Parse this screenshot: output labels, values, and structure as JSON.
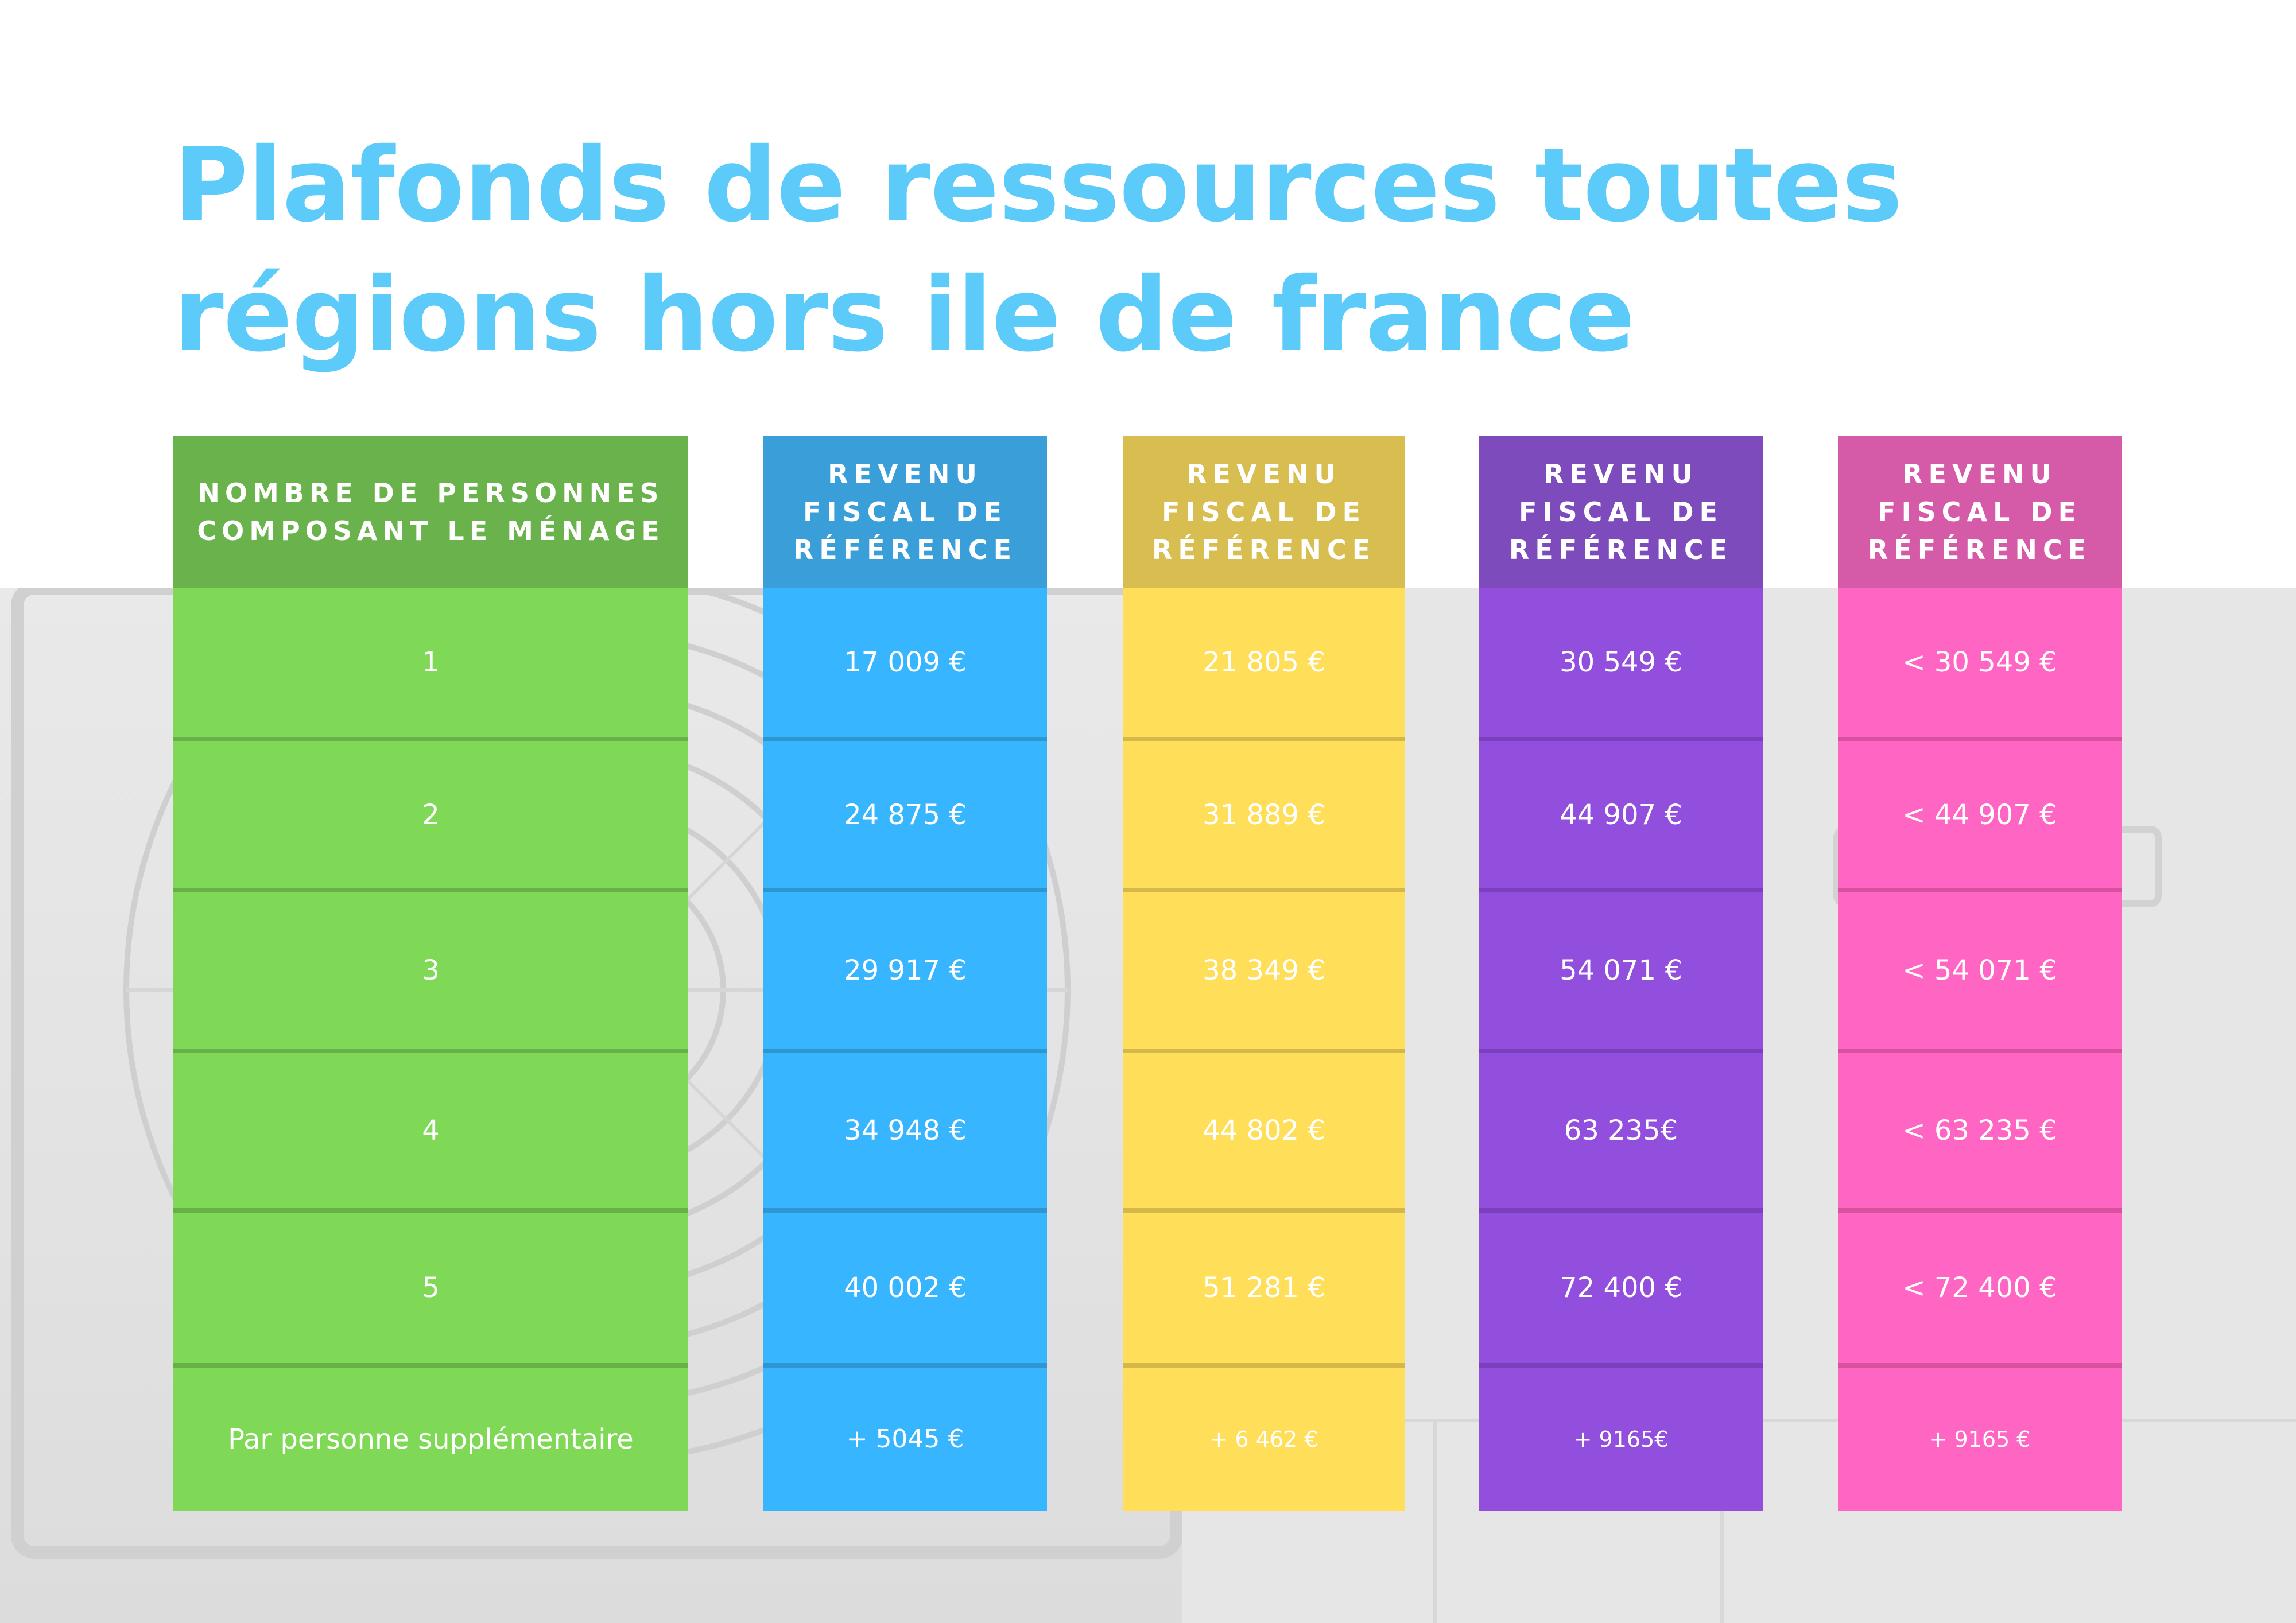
{
  "title": {
    "line1": "Plafonds de ressources toutes",
    "line2": "régions hors ile de france"
  },
  "columns": [
    {
      "header": [
        "NOMBRE DE PERSONNES",
        "COMPOSANT LE MÉNAGE"
      ],
      "header_color": "#6ab24c",
      "cell_color": "#7fd957",
      "sep_color": "#68b048",
      "cells": [
        "1",
        "2",
        "3",
        "4",
        "5",
        "Par personne supplémentaire"
      ]
    },
    {
      "header": [
        "REVENU",
        "FISCAL DE",
        "RÉFÉRENCE"
      ],
      "header_color": "#3a9fd8",
      "cell_color": "#37b6ff",
      "sep_color": "#2e97d2",
      "cells": [
        "17 009 €",
        "24 875 €",
        "29 917 €",
        "34 948 €",
        "40 002 €",
        "+ 5045 €"
      ]
    },
    {
      "header": [
        "REVENU",
        "FISCAL DE",
        "RÉFÉRENCE"
      ],
      "header_color": "#d8bd50",
      "cell_color": "#ffde59",
      "sep_color": "#d4b84a",
      "cells": [
        "21 805 €",
        "31 889 €",
        "38 349 €",
        "44 802 €",
        "51 281 €",
        "+  6 462 €"
      ]
    },
    {
      "header": [
        "REVENU",
        "FISCAL DE",
        "RÉFÉRENCE"
      ],
      "header_color": "#7e4bbd",
      "cell_color": "#924fde",
      "sep_color": "#7a40bd",
      "cells": [
        "30 549 €",
        "44 907 €",
        "54 071 €",
        "63 235€",
        "72 400 €",
        "+  9165€"
      ]
    },
    {
      "header": [
        "REVENU",
        "FISCAL DE",
        "RÉFÉRENCE"
      ],
      "header_color": "#d55aa8",
      "cell_color": "#ff66c4",
      "sep_color": "#d9509f",
      "cells": [
        "< 30 549 €",
        "< 44 907 €",
        "< 54 071 €",
        "< 63 235 €",
        "< 72 400 €",
        "+  9165 €"
      ]
    }
  ]
}
